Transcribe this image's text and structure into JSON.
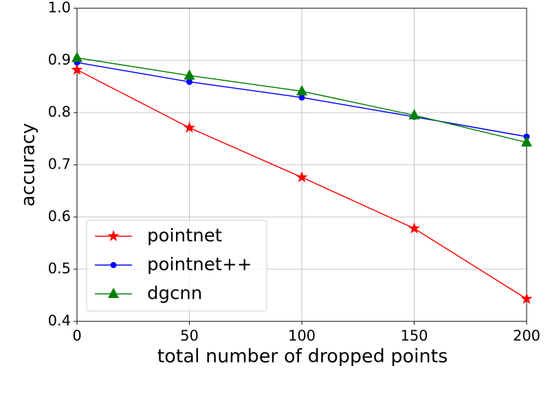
{
  "chart_data": {
    "type": "line",
    "x_label": "total number of dropped points",
    "y_label": "accuracy",
    "x": [
      0,
      50,
      100,
      150,
      200
    ],
    "series": [
      {
        "name": "pointnet",
        "color": "#ff0000",
        "marker": "star",
        "values": [
          0.882,
          0.771,
          0.676,
          0.578,
          0.443
        ]
      },
      {
        "name": "pointnet++",
        "color": "#0000ff",
        "marker": "circle",
        "values": [
          0.896,
          0.859,
          0.829,
          0.792,
          0.754
        ]
      },
      {
        "name": "dgcnn",
        "color": "#008000",
        "marker": "triangle",
        "values": [
          0.905,
          0.871,
          0.841,
          0.795,
          0.743
        ]
      }
    ],
    "xlim": [
      0,
      200
    ],
    "xticks": [
      0,
      50,
      100,
      150,
      200
    ],
    "ylim": [
      0.4,
      1.0
    ],
    "yticks": [
      0.4,
      0.5,
      0.6,
      0.7,
      0.8,
      0.9,
      {
        "value": 1.0,
        "label": "1.0"
      }
    ],
    "grid": true,
    "legend": "lower-left"
  }
}
